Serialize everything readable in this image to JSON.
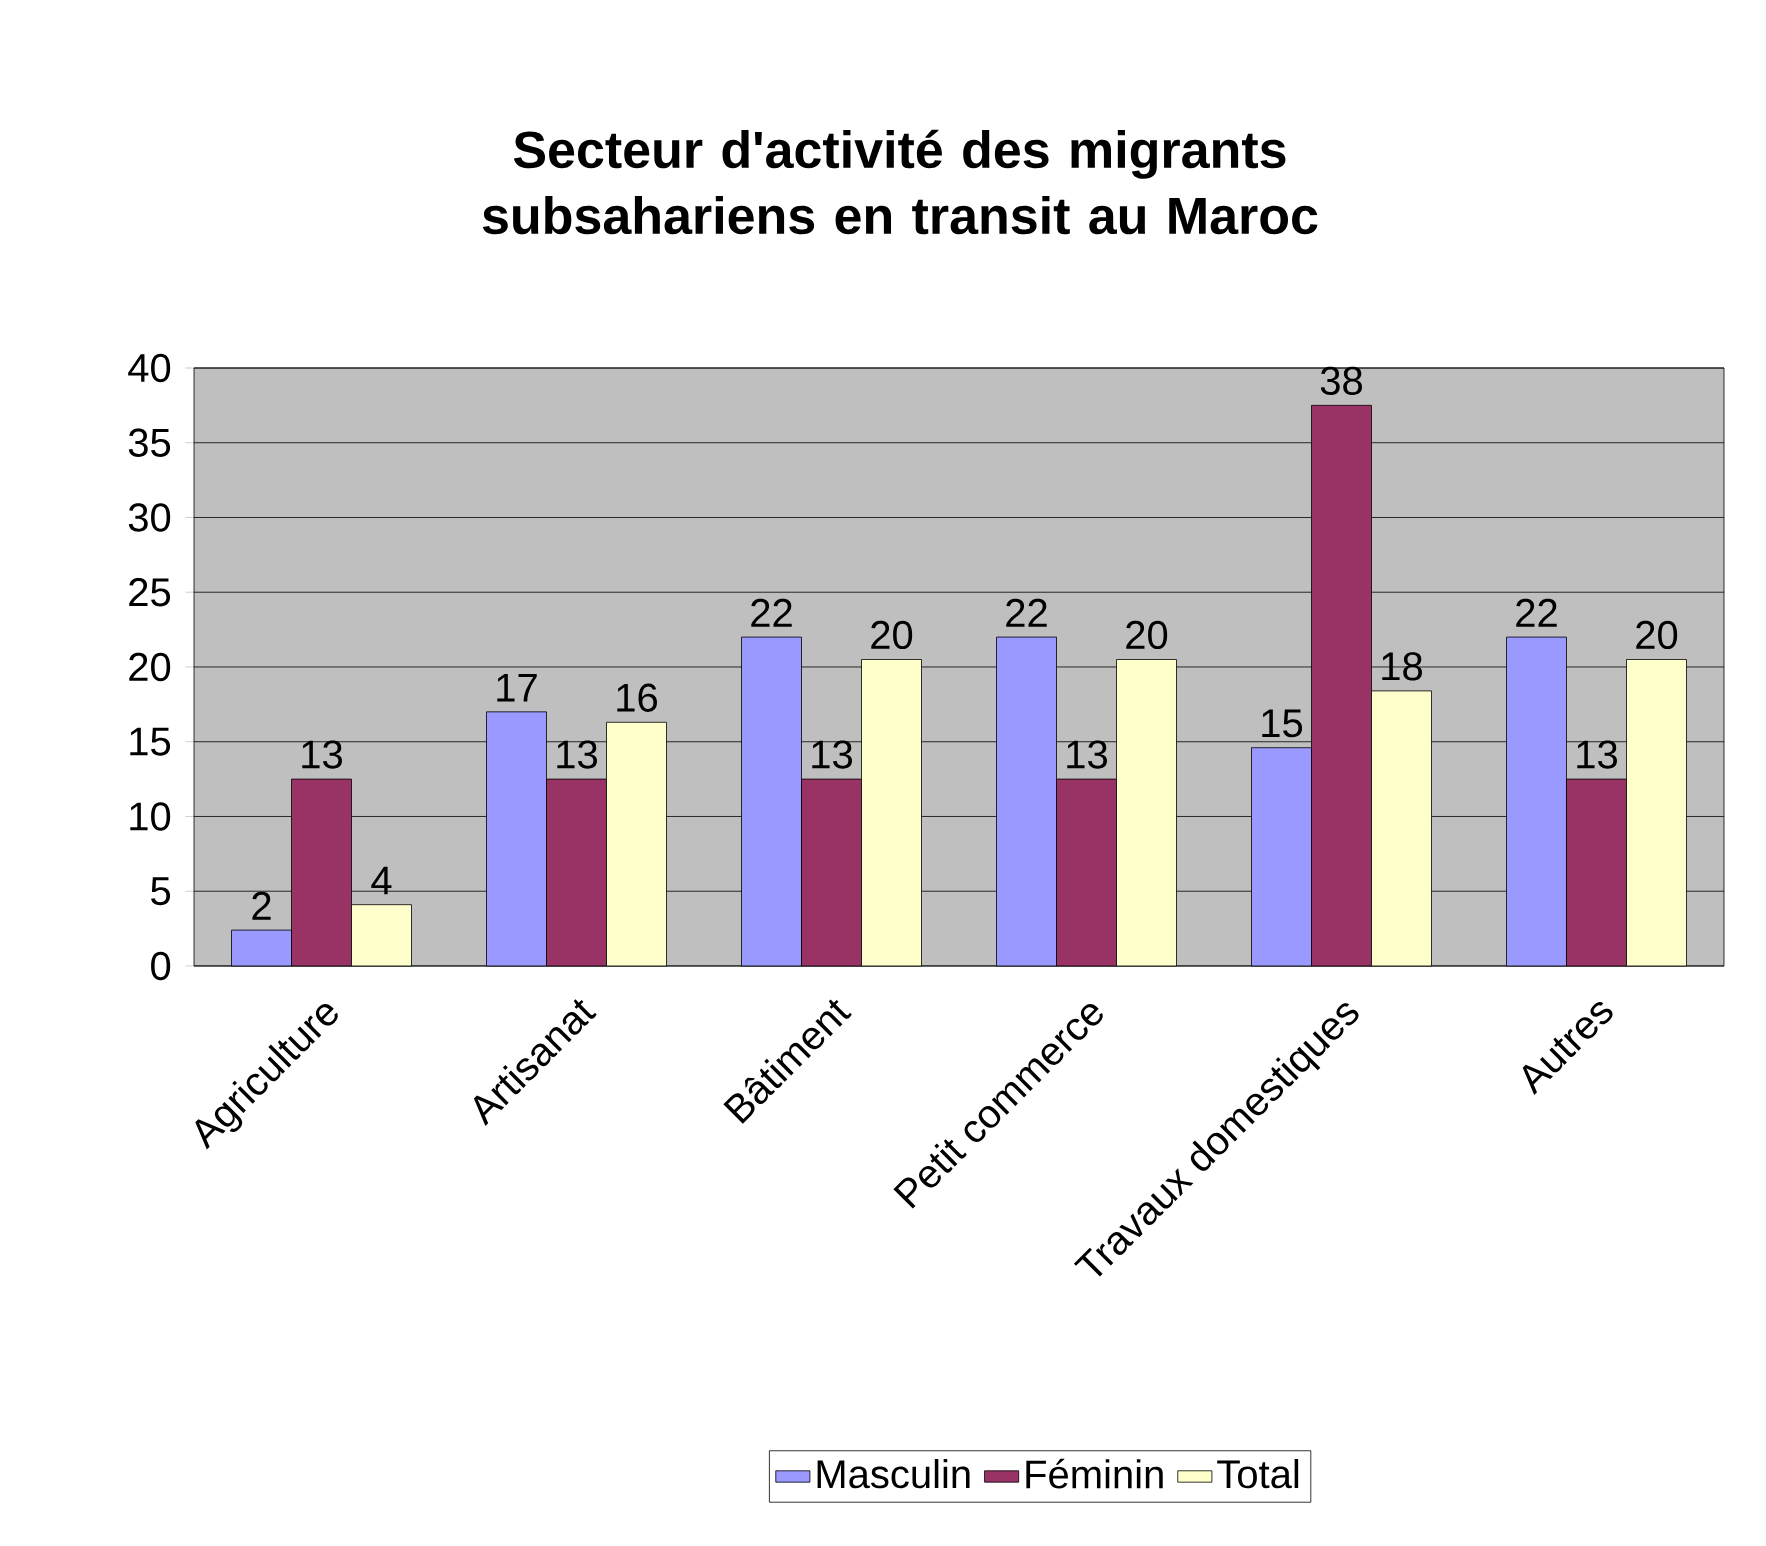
{
  "chart_data": {
    "type": "bar",
    "title": "Secteur d'activité des migrants subsahariens en transit au Maroc",
    "categories": [
      "Agriculture",
      "Artisanat",
      "Bâtiment",
      "Petit commerce",
      "Travaux domestiques",
      "Autres"
    ],
    "series": [
      {
        "name": "Masculin",
        "color": "#9999ff",
        "values": [
          2.4,
          17,
          22,
          22,
          14.6,
          22
        ],
        "value_labels": [
          "2",
          "17",
          "22",
          "22",
          "15",
          "22"
        ]
      },
      {
        "name": "Féminin",
        "color": "#993366",
        "values": [
          12.5,
          12.5,
          12.5,
          12.5,
          37.5,
          12.5
        ],
        "value_labels": [
          "13",
          "13",
          "13",
          "13",
          "38",
          "13"
        ]
      },
      {
        "name": "Total",
        "color": "#ffffcc",
        "values": [
          4.1,
          16.3,
          20.5,
          20.5,
          18.4,
          20.5
        ],
        "value_labels": [
          "4",
          "16",
          "20",
          "20",
          "18",
          "20"
        ]
      }
    ],
    "ylim": [
      0,
      40
    ],
    "yticks": [
      0,
      5,
      10,
      15,
      20,
      25,
      30,
      35,
      40
    ],
    "grid": "y",
    "legend": "bottom"
  }
}
